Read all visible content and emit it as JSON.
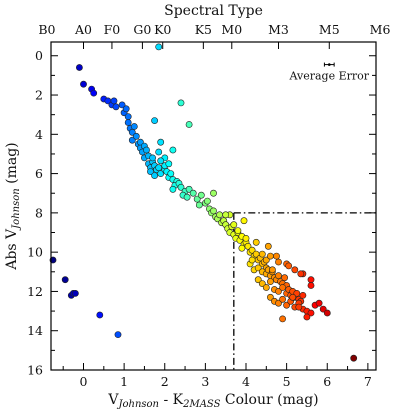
{
  "chart_data": {
    "type": "scatter",
    "title": "",
    "xlabel_parts": [
      {
        "text": "V",
        "style": "normal"
      },
      {
        "text": "Johnson",
        "style": "sub-italic"
      },
      {
        "text": " - K",
        "style": "normal"
      },
      {
        "text": "2MASS",
        "style": "sub-italic"
      },
      {
        "text": " Colour (mag)",
        "style": "normal"
      }
    ],
    "ylabel_parts": [
      {
        "text": "Abs V",
        "style": "normal"
      },
      {
        "text": "Johnson",
        "style": "sub-italic"
      },
      {
        "text": " (mag)",
        "style": "normal"
      }
    ],
    "top_axis_label": "Spectral Type",
    "xlim": [
      -0.8,
      7.2
    ],
    "ylim": [
      16,
      -0.7
    ],
    "y_inverted": true,
    "x_ticks": [
      0,
      1,
      2,
      3,
      4,
      5,
      6,
      7
    ],
    "y_ticks": [
      0,
      2,
      4,
      6,
      8,
      10,
      12,
      14,
      16
    ],
    "spectral_ticks": [
      {
        "label": "B0",
        "x": -0.9
      },
      {
        "label": "A0",
        "x": 0.0
      },
      {
        "label": "F0",
        "x": 0.7
      },
      {
        "label": "G0",
        "x": 1.45
      },
      {
        "label": "K0",
        "x": 1.95
      },
      {
        "label": "K5",
        "x": 2.95
      },
      {
        "label": "M0",
        "x": 3.65
      },
      {
        "label": "M3",
        "x": 4.8
      },
      {
        "label": "M5",
        "x": 6.05
      },
      {
        "label": "M6",
        "x": 7.3
      }
    ],
    "color_scale": {
      "low": -0.6,
      "high": 6.6,
      "colormap": "jet"
    },
    "reference_lines": {
      "style": "dash-dot",
      "vertical_x": 3.7,
      "vertical_y_range": [
        8,
        16
      ],
      "horizontal_y": 8,
      "horizontal_x_range": [
        3.7,
        7.2
      ]
    },
    "error_bar": {
      "label": "Average Error",
      "x": 6.05,
      "y": 0.45,
      "xerr": 0.12,
      "yerr": 0.07
    },
    "x": [
      -0.75,
      -0.45,
      -0.3,
      -0.25,
      -0.2,
      0.4,
      0.85,
      -0.1,
      0.0,
      0.2,
      0.25,
      0.5,
      0.6,
      0.7,
      0.75,
      0.8,
      0.95,
      1.0,
      1.05,
      1.1,
      1.1,
      1.15,
      1.2,
      1.25,
      1.2,
      1.3,
      1.35,
      1.4,
      1.4,
      1.5,
      1.45,
      1.55,
      1.5,
      1.6,
      1.6,
      1.65,
      1.7,
      1.75,
      1.8,
      1.65,
      1.7,
      1.75,
      1.85,
      1.9,
      2.0,
      1.85,
      1.9,
      2.0,
      2.05,
      2.1,
      2.15,
      2.2,
      2.3,
      2.25,
      2.1,
      2.2,
      2.35,
      2.4,
      2.5,
      2.45,
      2.6,
      2.55,
      2.7,
      2.8,
      2.85,
      2.9,
      3.0,
      3.05,
      3.1,
      3.15,
      3.2,
      3.25,
      3.3,
      3.35,
      3.4,
      3.45,
      3.5,
      3.55,
      3.6,
      3.65,
      3.7,
      3.75,
      3.8,
      3.85,
      3.9,
      3.95,
      4.0,
      3.6,
      3.7,
      3.8,
      3.9,
      4.05,
      4.1,
      4.15,
      4.2,
      4.25,
      4.3,
      4.35,
      4.4,
      4.45,
      4.5,
      4.0,
      4.1,
      4.2,
      4.3,
      4.4,
      4.5,
      4.55,
      4.6,
      4.65,
      4.7,
      4.75,
      4.8,
      4.85,
      4.9,
      4.95,
      5.0,
      4.3,
      4.4,
      4.5,
      4.6,
      4.7,
      4.8,
      4.9,
      5.0,
      5.05,
      5.1,
      5.15,
      5.2,
      5.25,
      5.3,
      5.35,
      5.4,
      4.6,
      4.7,
      4.8,
      4.9,
      5.0,
      5.1,
      5.2,
      5.3,
      5.4,
      5.5,
      5.6,
      5.7,
      4.4,
      4.5,
      4.6,
      4.8,
      5.0,
      5.2,
      5.4,
      5.6,
      5.8,
      4.9,
      5.3,
      5.5,
      5.9,
      6.0,
      6.65,
      1.85,
      1.75,
      2.4,
      2.6,
      2.2,
      2.0,
      1.9,
      3.2,
      3.5,
      3.95,
      4.25,
      4.55,
      4.75,
      5.05,
      5.35,
      5.6,
      4.15,
      4.65,
      5.15
    ],
    "y": [
      10.4,
      11.4,
      12.2,
      12.1,
      12.1,
      13.2,
      14.2,
      0.6,
      1.45,
      1.7,
      1.9,
      2.2,
      2.3,
      2.5,
      2.3,
      2.6,
      2.5,
      2.9,
      2.7,
      3.1,
      3.4,
      3.7,
      3.9,
      3.6,
      4.3,
      4.1,
      4.5,
      4.4,
      4.7,
      4.6,
      4.9,
      4.8,
      5.2,
      5.1,
      5.5,
      5.7,
      5.4,
      5.6,
      5.8,
      5.9,
      5.2,
      6.1,
      5.7,
      6.0,
      5.8,
      4.9,
      4.4,
      5.6,
      5.9,
      6.2,
      6.0,
      6.3,
      6.4,
      6.6,
      5.5,
      6.8,
      6.5,
      6.7,
      6.9,
      7.1,
      6.8,
      7.2,
      7.0,
      7.3,
      7.6,
      7.1,
      7.5,
      7.4,
      7.8,
      8.0,
      7.9,
      8.2,
      8.3,
      8.1,
      8.5,
      8.4,
      8.6,
      8.8,
      9.0,
      8.7,
      9.1,
      9.3,
      9.0,
      9.4,
      9.2,
      9.6,
      9.5,
      8.1,
      8.6,
      8.9,
      9.8,
      9.7,
      10.0,
      9.9,
      10.2,
      10.1,
      10.4,
      10.3,
      10.6,
      10.5,
      10.8,
      9.3,
      10.6,
      10.9,
      10.8,
      11.0,
      11.1,
      10.9,
      11.2,
      11.0,
      11.3,
      11.4,
      11.2,
      11.5,
      11.6,
      11.3,
      11.7,
      11.4,
      11.6,
      11.8,
      11.5,
      11.9,
      12.0,
      11.8,
      12.1,
      11.9,
      12.2,
      12.0,
      12.3,
      12.1,
      12.4,
      12.5,
      12.2,
      12.3,
      12.5,
      12.6,
      12.4,
      12.7,
      12.5,
      12.8,
      12.6,
      12.9,
      13.0,
      13.1,
      12.7,
      10.1,
      10.4,
      10.2,
      10.5,
      10.6,
      10.9,
      11.1,
      11.4,
      12.6,
      13.4,
      12.8,
      13.3,
      12.9,
      13.1,
      15.4,
      -0.45,
      3.3,
      2.4,
      3.5,
      4.8,
      5.2,
      5.35,
      7.0,
      8.1,
      8.4,
      9.5,
      9.7,
      10.2,
      10.7,
      11.1,
      11.7,
      10.4,
      10.9,
      12.3
    ]
  }
}
